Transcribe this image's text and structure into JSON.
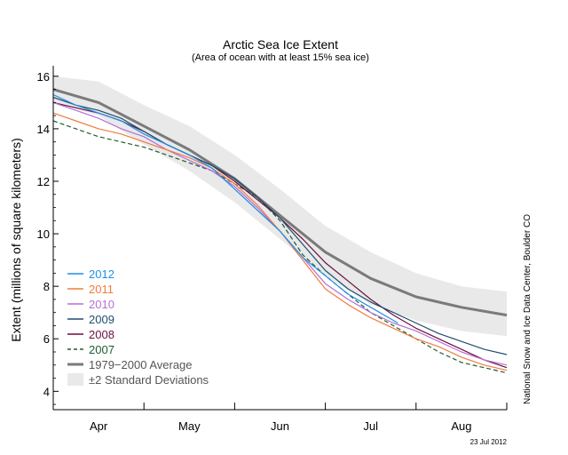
{
  "chart_data": {
    "type": "line",
    "title": "Arctic Sea Ice Extent",
    "subtitle": "(Area of ocean with at least 15% sea ice)",
    "ylabel": "Extent (millions of square kilometers)",
    "xlabel": "",
    "ylim": [
      3.3,
      16.4
    ],
    "yticks": [
      4,
      6,
      8,
      10,
      12,
      14,
      16
    ],
    "x_range": [
      0,
      5
    ],
    "months": [
      "Apr",
      "May",
      "Jun",
      "Jul",
      "Aug"
    ],
    "credit": "National Snow and Ice Data Center, Boulder CO",
    "date": "23 Jul 2012",
    "legend_position": "bottom-left",
    "average": {
      "name": "1979−2000 Average",
      "color": "#7a7a7a",
      "x": [
        0,
        0.5,
        1,
        1.5,
        2,
        2.5,
        3,
        3.5,
        4,
        4.5,
        5
      ],
      "values": [
        15.5,
        15.0,
        14.1,
        13.2,
        12.1,
        10.7,
        9.3,
        8.3,
        7.6,
        7.2,
        6.9
      ]
    },
    "std_band": {
      "name": "±2 Standard Deviations",
      "color": "#e9e9e9",
      "x": [
        0,
        0.5,
        1,
        1.5,
        2,
        2.5,
        3,
        3.5,
        4,
        4.5,
        5
      ],
      "upper": [
        16.0,
        15.8,
        14.9,
        14.1,
        13.0,
        11.7,
        10.3,
        9.3,
        8.5,
        8.0,
        7.8
      ],
      "lower": [
        15.0,
        14.5,
        13.4,
        12.4,
        11.2,
        9.8,
        8.4,
        7.3,
        6.7,
        6.3,
        6.1
      ]
    },
    "series": [
      {
        "name": "2012",
        "color": "#1f8fe6",
        "dashed": false,
        "x": [
          0,
          0.25,
          0.5,
          0.75,
          1,
          1.25,
          1.5,
          1.75,
          2,
          2.25,
          2.5,
          2.75,
          3,
          3.25,
          3.5,
          3.8
        ],
        "values": [
          15.3,
          14.9,
          14.6,
          14.3,
          13.8,
          13.4,
          13.0,
          12.5,
          11.7,
          10.9,
          10.1,
          9.1,
          8.4,
          7.7,
          7.2,
          6.6
        ]
      },
      {
        "name": "2011",
        "color": "#f07b3f",
        "dashed": false,
        "x": [
          0,
          0.25,
          0.5,
          0.75,
          1,
          1.25,
          1.5,
          1.75,
          2,
          2.25,
          2.5,
          2.75,
          3,
          3.25,
          3.5,
          3.75,
          4,
          4.25,
          4.5,
          4.75,
          5
        ],
        "values": [
          14.6,
          14.3,
          14.0,
          13.8,
          13.5,
          13.2,
          12.9,
          12.5,
          11.9,
          11.1,
          10.1,
          9.0,
          7.9,
          7.3,
          6.8,
          6.4,
          6.0,
          5.7,
          5.3,
          5.0,
          4.8
        ]
      },
      {
        "name": "2010",
        "color": "#b56fd6",
        "dashed": false,
        "x": [
          0,
          0.25,
          0.5,
          0.75,
          1,
          1.25,
          1.5,
          1.75,
          2,
          2.25,
          2.5,
          2.75,
          3,
          3.25,
          3.5,
          3.75,
          4,
          4.25,
          4.5,
          4.75,
          5
        ],
        "values": [
          15.0,
          14.7,
          14.4,
          14.0,
          13.7,
          13.2,
          12.8,
          12.4,
          11.8,
          11.0,
          10.1,
          9.1,
          8.1,
          7.5,
          7.0,
          6.6,
          6.3,
          5.9,
          5.5,
          5.2,
          5.0
        ]
      },
      {
        "name": "2009",
        "color": "#1f4e6e",
        "dashed": false,
        "x": [
          0,
          0.25,
          0.5,
          0.75,
          1,
          1.25,
          1.5,
          1.75,
          2,
          2.25,
          2.5,
          2.75,
          3,
          3.25,
          3.5,
          3.75,
          4,
          4.25,
          4.5,
          4.75,
          5
        ],
        "values": [
          15.2,
          14.9,
          14.7,
          14.4,
          13.9,
          13.4,
          13.0,
          12.6,
          12.1,
          11.4,
          10.6,
          9.6,
          8.6,
          7.9,
          7.4,
          7.0,
          6.6,
          6.2,
          5.9,
          5.6,
          5.4
        ]
      },
      {
        "name": "2008",
        "color": "#6b0f3f",
        "dashed": false,
        "x": [
          0,
          0.25,
          0.5,
          0.75,
          1,
          1.25,
          1.5,
          1.75,
          2,
          2.25,
          2.5,
          2.75,
          3,
          3.25,
          3.5,
          3.75,
          4,
          4.25,
          4.5,
          4.75,
          5
        ],
        "values": [
          15.0,
          14.8,
          14.6,
          14.3,
          13.9,
          13.4,
          13.0,
          12.6,
          12.0,
          11.3,
          10.6,
          9.8,
          8.9,
          8.2,
          7.5,
          6.9,
          6.4,
          6.0,
          5.6,
          5.2,
          4.9
        ]
      },
      {
        "name": "2007",
        "color": "#1e5c2e",
        "dashed": true,
        "x": [
          0,
          0.25,
          0.5,
          0.75,
          1,
          1.25,
          1.5,
          1.75,
          2,
          2.25,
          2.5,
          2.75,
          3,
          3.25,
          3.5,
          3.75,
          4,
          4.25,
          4.5,
          4.75,
          5
        ],
        "values": [
          14.3,
          14.0,
          13.7,
          13.5,
          13.3,
          13.0,
          12.7,
          12.4,
          11.9,
          11.4,
          10.5,
          9.2,
          8.4,
          7.7,
          7.0,
          6.5,
          6.0,
          5.5,
          5.1,
          4.9,
          4.7
        ]
      }
    ]
  }
}
